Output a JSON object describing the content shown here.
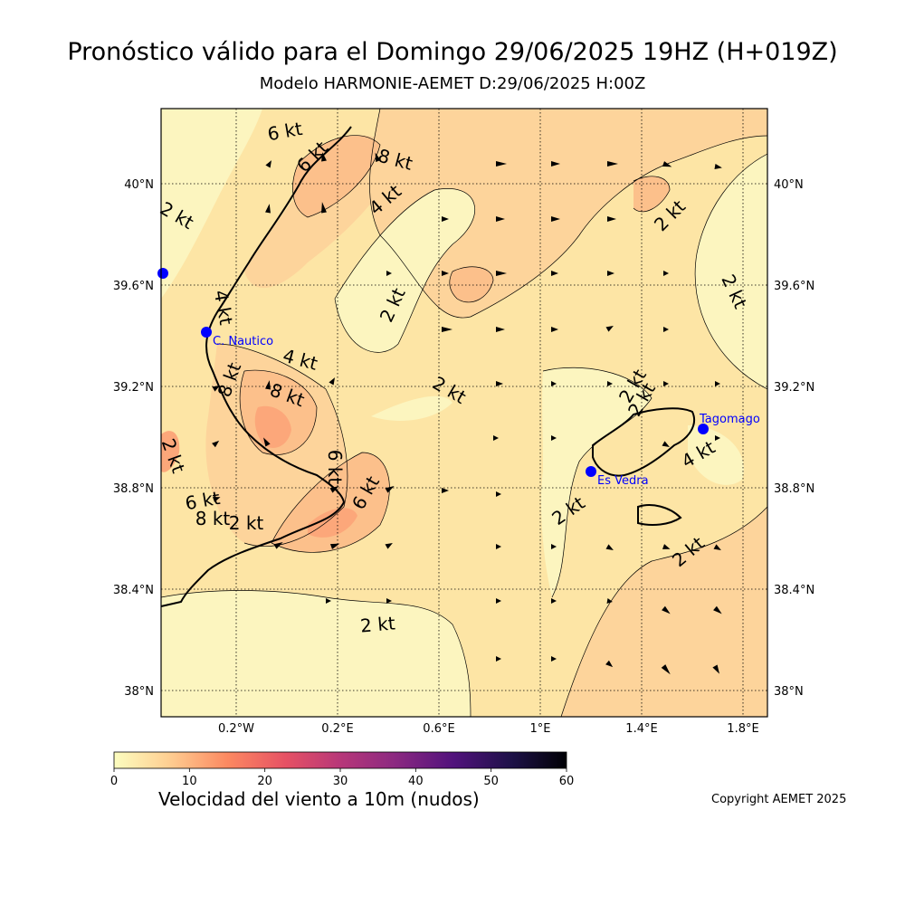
{
  "header": {
    "title": "Pronóstico válido para el Domingo 29/06/2025 19HZ (H+019Z)",
    "subtitle": "Modelo HARMONIE-AEMET D:29/06/2025 H:00Z"
  },
  "map": {
    "lon_ticks": [
      "0.2°W",
      "0.2°E",
      "0.6°E",
      "1°E",
      "1.4°E",
      "1.8°E"
    ],
    "lat_ticks": [
      "40°N",
      "39.6°N",
      "39.2°N",
      "38.8°N",
      "38.4°N",
      "38°N"
    ],
    "contour_labels": [
      "6 kt",
      "6 kt",
      "8 kt",
      "2 kt",
      "4 kt",
      "2 kt",
      "2 kt",
      "2 kt",
      "4 kt",
      "4 kt",
      "8 kt",
      "8 kt",
      "2 kt",
      "6 kt",
      "6 kt",
      "6 kt",
      "8 kt",
      "2 kt",
      "2 kt",
      "2 kt",
      "2 kt",
      "2 kt",
      "4 kt",
      "2 kt",
      "2 kt"
    ],
    "stations": [
      {
        "name": "C. Nautico"
      },
      {
        "name": "Tagomago"
      },
      {
        "name": "Es Vedra"
      }
    ],
    "colors": {
      "land_low": "#fcf5bf",
      "wind_2_4": "#fde5a5",
      "wind_4_6": "#fdd49b",
      "wind_6_8": "#fcc08b",
      "wind_8_10": "#fca77a",
      "station": "#0000ff"
    }
  },
  "colorbar": {
    "ticks": [
      "0",
      "10",
      "20",
      "30",
      "40",
      "50",
      "60"
    ],
    "label": "Velocidad del viento a 10m (nudos)",
    "range": [
      0,
      60
    ],
    "colormap": "magma_r"
  },
  "footer": {
    "copyright": "Copyright AEMET 2025"
  }
}
